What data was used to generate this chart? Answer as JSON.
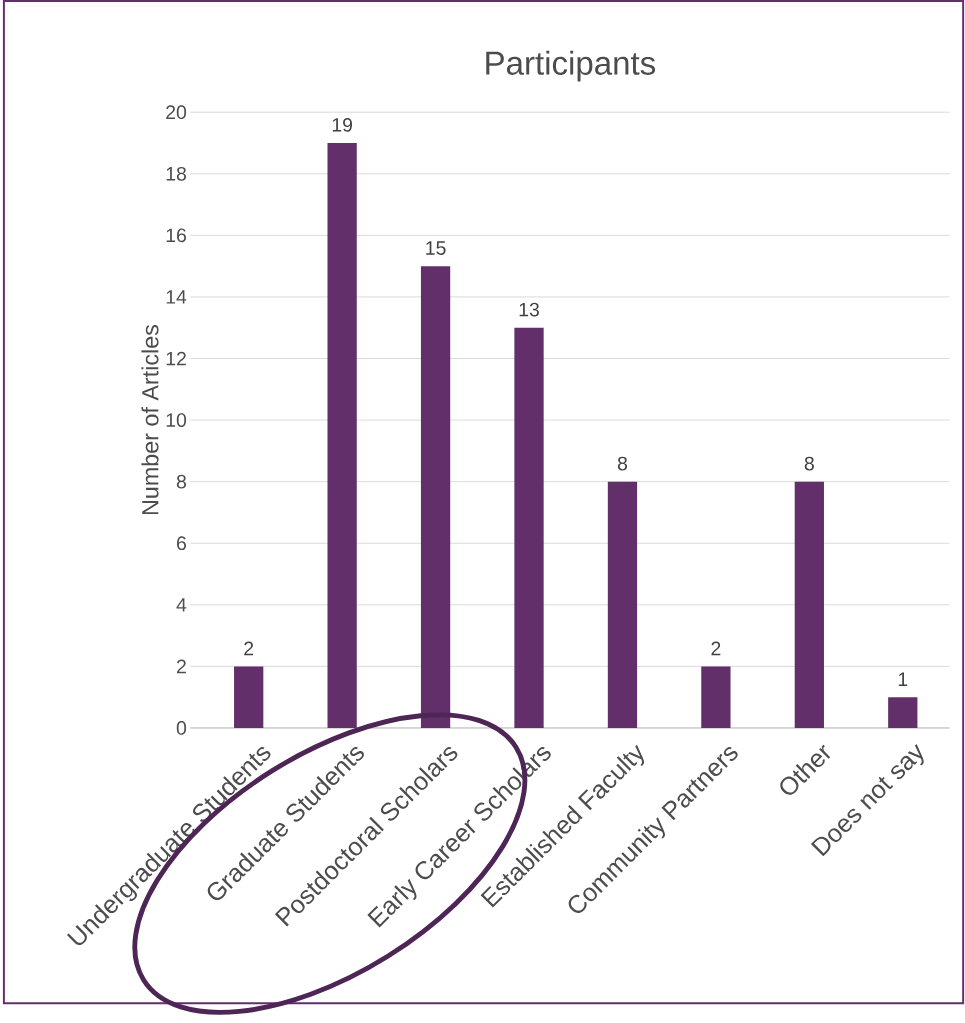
{
  "chart_data": {
    "type": "bar",
    "title": "Participants",
    "ylabel": "Number of Articles",
    "categories": [
      "Undergraduate Students",
      "Graduate Students",
      "Postdoctoral Scholars",
      "Early Career Scholars",
      "Established Faculty",
      "Community Partners",
      "Other",
      "Does not say"
    ],
    "values": [
      2,
      19,
      15,
      13,
      8,
      2,
      8,
      1
    ],
    "color": "#622f6b",
    "ylim": [
      0,
      20
    ],
    "yticks": [
      0,
      2,
      4,
      6,
      8,
      10,
      12,
      14,
      16,
      18,
      20
    ],
    "grid": "y",
    "data_labels": true
  }
}
